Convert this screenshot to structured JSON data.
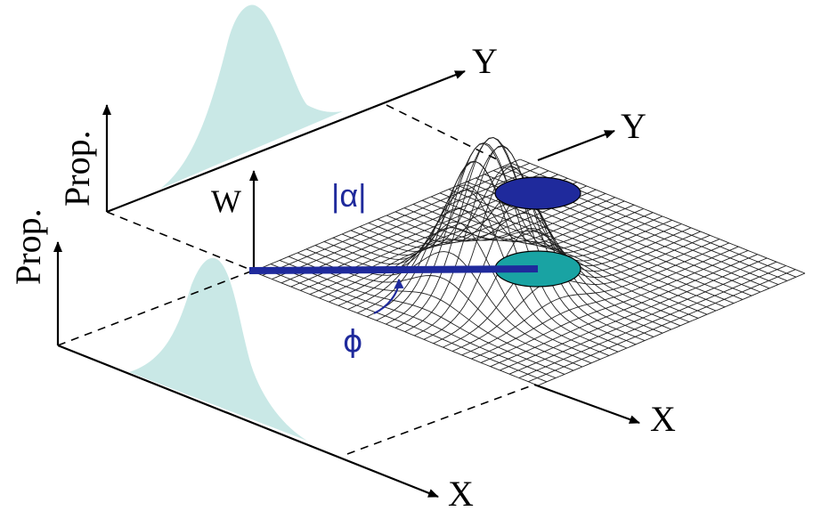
{
  "labels": {
    "prop_upper": "Prop.",
    "prop_lower": "Prop.",
    "y_upper": "Y",
    "y_surface": "Y",
    "x_lower": "X",
    "x_surface": "X",
    "w_axis": "W",
    "amplitude": "|α|",
    "phase": "ϕ"
  },
  "colors": {
    "marginal_fill": "#c9e8e6",
    "vector": "#1f2a9c",
    "cross_section_top": "#1f2a9c",
    "cross_section_bottom": "#19a3a3",
    "mesh": "#222222"
  }
}
